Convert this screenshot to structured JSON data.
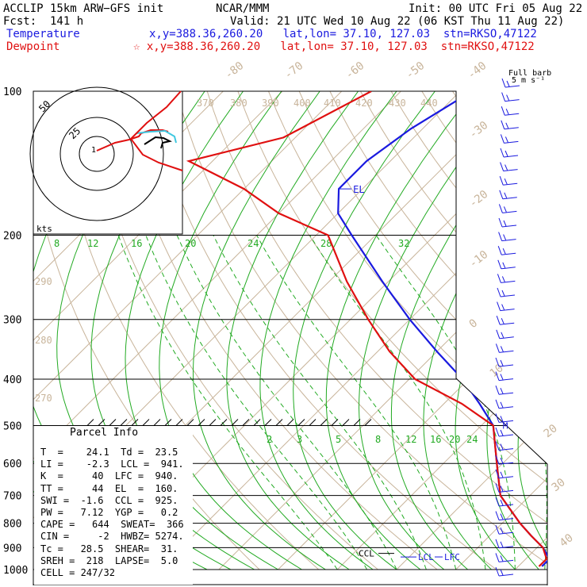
{
  "header": {
    "model": "ACCLIP 15km ARW−GFS init",
    "fcst": "Fcst:  141 h",
    "center": "NCAR/MMM",
    "init": "Init: 00 UTC Fri 05 Aug 22",
    "valid": "Valid: 21 UTC Wed 10 Aug 22 (06 KST Thu 11 Aug 22)",
    "temp_label": "Temperature",
    "temp_info": "x,y=388.36,260.20   lat,lon= 37.10, 127.03  stn=RKSO,47122",
    "dew_label": "Dewpoint",
    "dew_info": "☆ x,y=388.36,260.20   lat,lon= 37.10, 127.03  stn=RKSO,47122",
    "barb_title": "Full barb",
    "barb_unit": "5 m s⁻¹"
  },
  "colors": {
    "temperature": "#1a1adf",
    "dewpoint": "#e01010",
    "theta": "#c8b49a",
    "mixing_ratio": "#22aa22",
    "hodograph_cyan": "#40c8e0"
  },
  "chart_data": {
    "type": "skew-t",
    "pressure_ticks": [
      "100",
      "200",
      "300",
      "400",
      "500",
      "600",
      "700",
      "800",
      "900",
      "1000"
    ],
    "pressure_levels": [
      100,
      200,
      300,
      400,
      500,
      600,
      700,
      800,
      900,
      1000
    ],
    "ylim": [
      1000,
      100
    ],
    "log_scale": true,
    "top_temp_labels": [
      "-80",
      "-70",
      "-60",
      "-50",
      "-40"
    ],
    "right_temp_labels": [
      "-30",
      "-20",
      "-10",
      "0",
      "10",
      "20",
      "30",
      "40"
    ],
    "theta_labels": [
      "370",
      "380",
      "390",
      "400",
      "410",
      "420",
      "430",
      "440",
      "290",
      "280",
      "270"
    ],
    "mixing_labels_top": [
      "8",
      "12",
      "16",
      "20",
      "24",
      "28",
      "32"
    ],
    "mixing_labels_mid": [
      "2",
      "3",
      "5",
      "8",
      "12",
      "16",
      "20",
      "24"
    ],
    "temperature_profile": [
      {
        "p": 100,
        "t": -68
      },
      {
        "p": 120,
        "t": -72
      },
      {
        "p": 140,
        "t": -74
      },
      {
        "p": 160,
        "t": -74
      },
      {
        "p": 180,
        "t": -70
      },
      {
        "p": 200,
        "t": -64
      },
      {
        "p": 250,
        "t": -51
      },
      {
        "p": 300,
        "t": -40
      },
      {
        "p": 350,
        "t": -30
      },
      {
        "p": 400,
        "t": -21
      },
      {
        "p": 450,
        "t": -14
      },
      {
        "p": 500,
        "t": -8
      },
      {
        "p": 600,
        "t": -1
      },
      {
        "p": 700,
        "t": 5
      },
      {
        "p": 800,
        "t": 13
      },
      {
        "p": 850,
        "t": 17
      },
      {
        "p": 900,
        "t": 21
      },
      {
        "p": 950,
        "t": 24
      },
      {
        "p": 985,
        "t": 24
      }
    ],
    "dewpoint_profile": [
      {
        "p": 100,
        "t": -85
      },
      {
        "p": 125,
        "t": -92
      },
      {
        "p": 140,
        "t": -104
      },
      {
        "p": 160,
        "t": -90
      },
      {
        "p": 180,
        "t": -80
      },
      {
        "p": 200,
        "t": -68
      },
      {
        "p": 250,
        "t": -57
      },
      {
        "p": 300,
        "t": -47
      },
      {
        "p": 350,
        "t": -38
      },
      {
        "p": 400,
        "t": -29
      },
      {
        "p": 450,
        "t": -17
      },
      {
        "p": 500,
        "t": -8
      },
      {
        "p": 600,
        "t": -1
      },
      {
        "p": 700,
        "t": 5
      },
      {
        "p": 800,
        "t": 13
      },
      {
        "p": 850,
        "t": 17
      },
      {
        "p": 900,
        "t": 21
      },
      {
        "p": 950,
        "t": 23.5
      },
      {
        "p": 985,
        "t": 23.5
      }
    ],
    "parcel_labels": {
      "el": "EL",
      "m": "M",
      "ccl": "CCL",
      "lcl": "LCL",
      "lfc": "LFC"
    },
    "hodograph": {
      "rings": [
        "50",
        "25"
      ],
      "unit_label": "kts",
      "center_label": "1"
    }
  },
  "parcel_info": {
    "title": "Parcel Info",
    "lines": [
      "T  =    24.1  Td =  23.5",
      "LI =    -2.3  LCL =  941.",
      "K  =     40  LFC =  940.",
      "TT =     44  EL  =  160.",
      "SWI =  -1.6  CCL =  925.",
      "PW =   7.12  YGP =   0.2",
      "CAPE =   644  SWEAT=  366",
      "CIN =     -2  HWBZ= 5274.",
      "Tc =   28.5  SHEAR=  31.",
      "SREH =  218  LAPSE=  5.0",
      "CELL = 247/32"
    ]
  }
}
